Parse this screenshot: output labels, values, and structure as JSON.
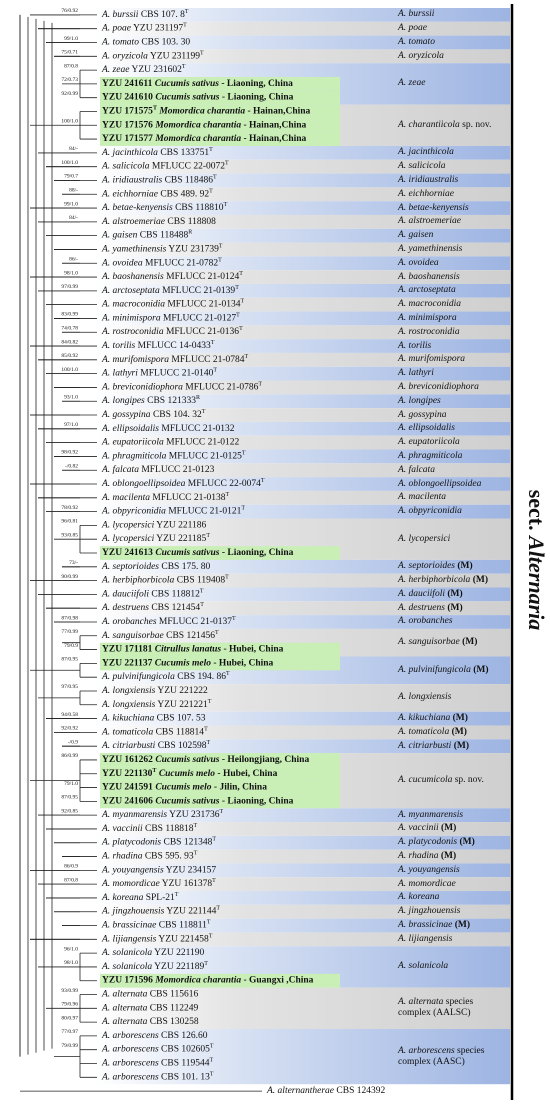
{
  "tree": {
    "section": {
      "prefix": "sect.",
      "name": "Alternaria"
    },
    "clades": [
      {
        "name": "A. burssii",
        "tips": [
          {
            "species": "A. burssii",
            "strain": "CBS 107. 8",
            "mark": "T",
            "support": "76/0.92"
          }
        ]
      },
      {
        "name": "A. poae",
        "tips": [
          {
            "species": "A. poae",
            "strain": "YZU 231197",
            "mark": "T"
          }
        ]
      },
      {
        "name": "A. tomato",
        "tips": [
          {
            "species": "A. tomato",
            "strain": "CBS 103. 30",
            "support": "99/1.0"
          }
        ]
      },
      {
        "name": "A. oryzicola",
        "tips": [
          {
            "species": "A. oryzicola",
            "strain": "YZU 231199",
            "mark": "T",
            "support": "75/0.71"
          }
        ]
      },
      {
        "name": "A. zeae",
        "tips": [
          {
            "species": "A. zeae",
            "strain": "YZU 231602",
            "mark": "T",
            "support": "87/0.8"
          },
          {
            "strain": "YZU 241611",
            "host": "Cucumis sativus",
            "locality": "- Liaoning, China",
            "support": "72/0.73"
          },
          {
            "strain": "YZU 241610",
            "host": "Cucumis sativus",
            "locality": "- Liaoning, China",
            "support": "92/0.99"
          }
        ]
      },
      {
        "name": "A. charantiicola",
        "note": "sp. nov.",
        "tips": [
          {
            "strain": "YZU 171575",
            "mark": "T",
            "host": "Momordica charantia",
            "locality": "- Hainan,China"
          },
          {
            "strain": "YZU 171576",
            "host": "Momordica charantia",
            "locality": "- Hainan,China",
            "support": "100/1.0"
          },
          {
            "strain": "YZU 171577",
            "host": "Momordica charantia",
            "locality": "- Hainan,China"
          }
        ]
      },
      {
        "name": "A. jacinthicola",
        "tips": [
          {
            "species": "A. jacinthicola",
            "strain": "CBS 133751",
            "mark": "T",
            "support": "84/-"
          }
        ]
      },
      {
        "name": "A. salicicola",
        "tips": [
          {
            "species": "A. salicicola",
            "strain": "MFLUCC 22-0072",
            "mark": "T",
            "support": "100/1.0"
          }
        ]
      },
      {
        "name": "A. iridiaustralis",
        "tips": [
          {
            "species": "A. iridiaustralis",
            "strain": "CBS 118486",
            "mark": "T",
            "support": "79/0.7"
          }
        ]
      },
      {
        "name": "A. eichhorniae",
        "tips": [
          {
            "species": "A. eichhorniae",
            "strain": "CBS 489. 92",
            "mark": "T",
            "support": "88/-"
          }
        ]
      },
      {
        "name": "A. betae-kenyensis",
        "tips": [
          {
            "species": "A. betae-kenyensis",
            "strain": "CBS 118810",
            "mark": "T",
            "support": "99/1.0"
          }
        ]
      },
      {
        "name": "A. alstroemeriae",
        "tips": [
          {
            "species": "A. alstroemeriae",
            "strain": "CBS 118808",
            "support": "84/-"
          }
        ]
      },
      {
        "name": "A. gaisen",
        "tips": [
          {
            "species": "A. gaisen",
            "strain": "CBS 118488",
            "mark": "R"
          }
        ]
      },
      {
        "name": "A. yamethinensis",
        "tips": [
          {
            "species": "A. yamethinensis",
            "strain": "YZU 231739",
            "mark": "T"
          }
        ]
      },
      {
        "name": "A. ovoidea",
        "tips": [
          {
            "species": "A. ovoidea",
            "strain": "MFLUCC 21-0782",
            "mark": "T",
            "support": "86/-"
          }
        ]
      },
      {
        "name": "A. baoshanensis",
        "tips": [
          {
            "species": "A. baoshanensis",
            "strain": "MFLUCC 21-0124",
            "mark": "T",
            "support": "98/1.0"
          }
        ]
      },
      {
        "name": "A. arctoseptata",
        "tips": [
          {
            "species": "A. arctoseptata",
            "strain": "MFLUCC 21-0139",
            "mark": "T",
            "support": "97/0.99"
          }
        ]
      },
      {
        "name": "A. macroconidia",
        "tips": [
          {
            "species": "A. macroconidia",
            "strain": "MFLUCC 21-0134",
            "mark": "T"
          }
        ]
      },
      {
        "name": "A. minimispora",
        "tips": [
          {
            "species": "A. minimispora",
            "strain": "MFLUCC 21-0127",
            "mark": "T",
            "support": "83/0.99"
          }
        ]
      },
      {
        "name": "A. rostroconidia",
        "tips": [
          {
            "species": "A. rostroconidia",
            "strain": "MFLUCC 21-0136",
            "mark": "T",
            "support": "74/0.78"
          }
        ]
      },
      {
        "name": "A. torilis",
        "tips": [
          {
            "species": "A. torilis",
            "strain": "MFLUCC 14-0433",
            "mark": "T",
            "support": "84/0.82"
          }
        ]
      },
      {
        "name": "A. murifomispora",
        "tips": [
          {
            "species": "A. murifomispora",
            "strain": "MFLUCC 21-0784",
            "mark": "T",
            "support": "85/0.92"
          }
        ]
      },
      {
        "name": "A. lathyri",
        "tips": [
          {
            "species": "A. lathyri",
            "strain": "MFLUCC 21-0140",
            "mark": "T",
            "support": "100/1.0"
          }
        ]
      },
      {
        "name": "A. breviconidiophora",
        "tips": [
          {
            "species": "A. breviconidiophora",
            "strain": "MFLUCC 21-0786",
            "mark": "T"
          }
        ]
      },
      {
        "name": "A. longipes",
        "tips": [
          {
            "species": "A. longipes",
            "strain": "CBS 121333",
            "mark": "R",
            "support": "93/1.0"
          }
        ]
      },
      {
        "name": "A. gossypina",
        "tips": [
          {
            "species": "A. gossypina",
            "strain": "CBS 104. 32",
            "mark": "T"
          }
        ]
      },
      {
        "name": "A. ellipsoidalis",
        "tips": [
          {
            "species": "A. ellipsoidalis",
            "strain": "MFLUCC 21-0132",
            "support": "97/1.0"
          }
        ]
      },
      {
        "name": "A. eupatoriicola",
        "tips": [
          {
            "species": "A. eupatoriicola",
            "strain": "MFLUCC 21-0122"
          }
        ]
      },
      {
        "name": "A. phragmiticola",
        "tips": [
          {
            "species": "A. phragmiticola",
            "strain": "MFLUCC 21-0125",
            "mark": "T",
            "support": "98/0.92"
          }
        ]
      },
      {
        "name": "A. falcata",
        "tips": [
          {
            "species": "A. falcata",
            "strain": "MFLUCC 21-0123",
            "support": "-/0.82"
          }
        ]
      },
      {
        "name": "A. oblongoellipsoidea",
        "tips": [
          {
            "species": "A. oblongoellipsoidea",
            "strain": "MFLUCC 22-0074",
            "mark": "T"
          }
        ]
      },
      {
        "name": "A. macilenta",
        "tips": [
          {
            "species": "A. macilenta",
            "strain": "MFLUCC 21-0138",
            "mark": "T"
          }
        ]
      },
      {
        "name": "A. obpyriconidia",
        "tips": [
          {
            "species": "A. obpyriconidia",
            "strain": "MFLUCC 21-0121",
            "mark": "T",
            "support": "78/0.92"
          }
        ]
      },
      {
        "name": "A. lycopersici",
        "tips": [
          {
            "species": "A. lycopersici",
            "strain": "YZU 221186",
            "support": "96/0.81"
          },
          {
            "species": "A. lycopersici",
            "strain": "YZU 221185",
            "mark": "T",
            "support": "93/0.85"
          },
          {
            "strain": "YZU 241613",
            "host": "Cucumis sativus",
            "locality": "- Liaoning, China"
          }
        ]
      },
      {
        "name": "A. septorioides",
        "note": "(M)",
        "tips": [
          {
            "species": "A. septorioides",
            "strain": "CBS 175. 80",
            "support": "73/-"
          }
        ]
      },
      {
        "name": "A. herbiphorbicola",
        "note": "(M)",
        "tips": [
          {
            "species": "A. herbiphorbicola",
            "strain": "CBS 119408",
            "mark": "T",
            "support": "90/0.99"
          }
        ]
      },
      {
        "name": "A. dauciifoli",
        "note": "(M)",
        "tips": [
          {
            "species": "A. dauciifoli",
            "strain": "CBS 118812",
            "mark": "T"
          }
        ]
      },
      {
        "name": "A. destruens",
        "note": "(M)",
        "tips": [
          {
            "species": "A. destruens",
            "strain": "CBS 121454",
            "mark": "T"
          }
        ]
      },
      {
        "name": "A. orobanches",
        "tips": [
          {
            "species": "A. orobanches",
            "strain": "MFLUCC 21-0137",
            "mark": "T",
            "support": "87/0.98"
          }
        ]
      },
      {
        "name": "A. sanguisorbae",
        "note": "(M)",
        "tips": [
          {
            "species": "A. sanguisorbae",
            "strain": "CBS 121456",
            "mark": "T",
            "support": "77/0.99"
          },
          {
            "strain": "YZU 171181",
            "host": "Citrullus lanatus",
            "locality": "- Hubei, China",
            "support": "79/0.9"
          }
        ]
      },
      {
        "name": "A. pulvinifungicola",
        "note": "(M)",
        "tips": [
          {
            "strain": "YZU 221137",
            "host": "Cucumis melo",
            "locality": "- Hubei, China",
            "support": "87/0.95"
          },
          {
            "species": "A. pulvinifungicola",
            "strain": "CBS 194. 86",
            "mark": "T"
          }
        ]
      },
      {
        "name": "A. longxiensis",
        "tips": [
          {
            "species": "A. longxiensis",
            "strain": "YZU 221222",
            "support": "97/0.95"
          },
          {
            "species": "A. longxiensis",
            "strain": "YZU 221221",
            "mark": "T"
          }
        ]
      },
      {
        "name": "A. kikuchiana",
        "note": "(M)",
        "tips": [
          {
            "species": "A. kikuchiana",
            "strain": "CBS 107. 53",
            "support": "94/0.58"
          }
        ]
      },
      {
        "name": "A. tomaticola",
        "note": "(M)",
        "tips": [
          {
            "species": "A. tomaticola",
            "strain": "CBS 118814",
            "mark": "T",
            "support": "92/0.92"
          }
        ]
      },
      {
        "name": "A. citriarbusti",
        "note": "(M)",
        "tips": [
          {
            "species": "A. citriarbusti",
            "strain": "CBS 102598",
            "mark": "T",
            "support": "-/0.9"
          }
        ]
      },
      {
        "name": "A. cucumicola",
        "note": "sp. nov.",
        "tips": [
          {
            "strain": "YZU 161262",
            "host": "Cucumis sativus",
            "locality": "- Heilongjiang, China",
            "support": "86/0.99"
          },
          {
            "strain": "YZU 221130",
            "mark": "T",
            "host": "Cucumis melo",
            "locality": "- Hubei, China"
          },
          {
            "strain": "YZU 241591",
            "host": "Cucumis melo",
            "locality": "- Jilin, China",
            "support": "79/1.0"
          },
          {
            "strain": "YZU 241606",
            "host": "Cucumis sativus",
            "locality": "- Liaoning, China",
            "support": "87/0.95"
          }
        ]
      },
      {
        "name": "A. myanmarensis",
        "tips": [
          {
            "species": "A. myanmarensis",
            "strain": "YZU 231736",
            "mark": "T",
            "support": "92/0.85"
          }
        ]
      },
      {
        "name": "A. vaccinii",
        "note": "(M)",
        "tips": [
          {
            "species": "A. vaccinii",
            "strain": "CBS 118818",
            "mark": "T"
          }
        ]
      },
      {
        "name": "A. platycodonis",
        "note": "(M)",
        "tips": [
          {
            "species": "A. platycodonis",
            "strain": "CBS 121348",
            "mark": "T"
          }
        ]
      },
      {
        "name": "A. rhadina",
        "note": "(M)",
        "tips": [
          {
            "species": "A. rhadina",
            "strain": "CBS 595. 93",
            "mark": "T"
          }
        ]
      },
      {
        "name": "A. youyangensis",
        "tips": [
          {
            "species": "A. youyangensis",
            "strain": "YZU 234157",
            "support": "86/0.9"
          }
        ]
      },
      {
        "name": "A. momordicae",
        "tips": [
          {
            "species": "A. momordicae",
            "strain": "YZU 161378",
            "mark": "T",
            "support": "87/0.8"
          }
        ]
      },
      {
        "name": "A. koreana",
        "tips": [
          {
            "species": "A. koreana",
            "strain": "SPL-21",
            "mark": "T"
          }
        ]
      },
      {
        "name": "A. jingzhouensis",
        "tips": [
          {
            "species": "A. jingzhouensis",
            "strain": "YZU 221144",
            "mark": "T"
          }
        ]
      },
      {
        "name": "A. brassicinae",
        "note": "(M)",
        "tips": [
          {
            "species": "A. brassicinae",
            "strain": "CBS 118811",
            "mark": "T"
          }
        ]
      },
      {
        "name": "A. lijiangensis",
        "tips": [
          {
            "species": "A. lijiangensis",
            "strain": "YZU 221458",
            "mark": "T"
          }
        ]
      },
      {
        "name": "A. solanicola",
        "tips": [
          {
            "species": "A. solanicola",
            "strain": "YZU 221190",
            "support": "96/1.0"
          },
          {
            "species": "A. solanicola",
            "strain": "YZU 221189",
            "mark": "T",
            "support": "98/1.0"
          },
          {
            "strain": "YZU 171596",
            "host": "Momordica charantia",
            "locality": "- Guangxi ,China"
          }
        ]
      },
      {
        "name": "A. alternata",
        "note": "species complex (AALSC)",
        "tips": [
          {
            "species": "A. alternata",
            "strain": "CBS 115616",
            "support": "93/0.99"
          },
          {
            "species": "A. alternata",
            "strain": "CBS 112249",
            "support": "79/0.96"
          },
          {
            "species": "A. alternata",
            "strain": "CBS 130258",
            "support": "80/0.97"
          }
        ]
      },
      {
        "name": "A. arborescens",
        "note": "species complex (AASC)",
        "tips": [
          {
            "species": "A. arborescens",
            "strain": "CBS 126.60",
            "support": "77/0.97"
          },
          {
            "species": "A. arborescens",
            "strain": "CBS 102605",
            "mark": "T",
            "support": "79/0.99"
          },
          {
            "species": "A. arborescens",
            "strain": "CBS 119544",
            "mark": "T"
          },
          {
            "species": "A. arborescens",
            "strain": "CBS 101. 13",
            "mark": "T"
          }
        ]
      },
      {
        "tips": [
          {
            "species": "A. alternantherae",
            "strain": "CBS 124392"
          }
        ]
      }
    ]
  }
}
